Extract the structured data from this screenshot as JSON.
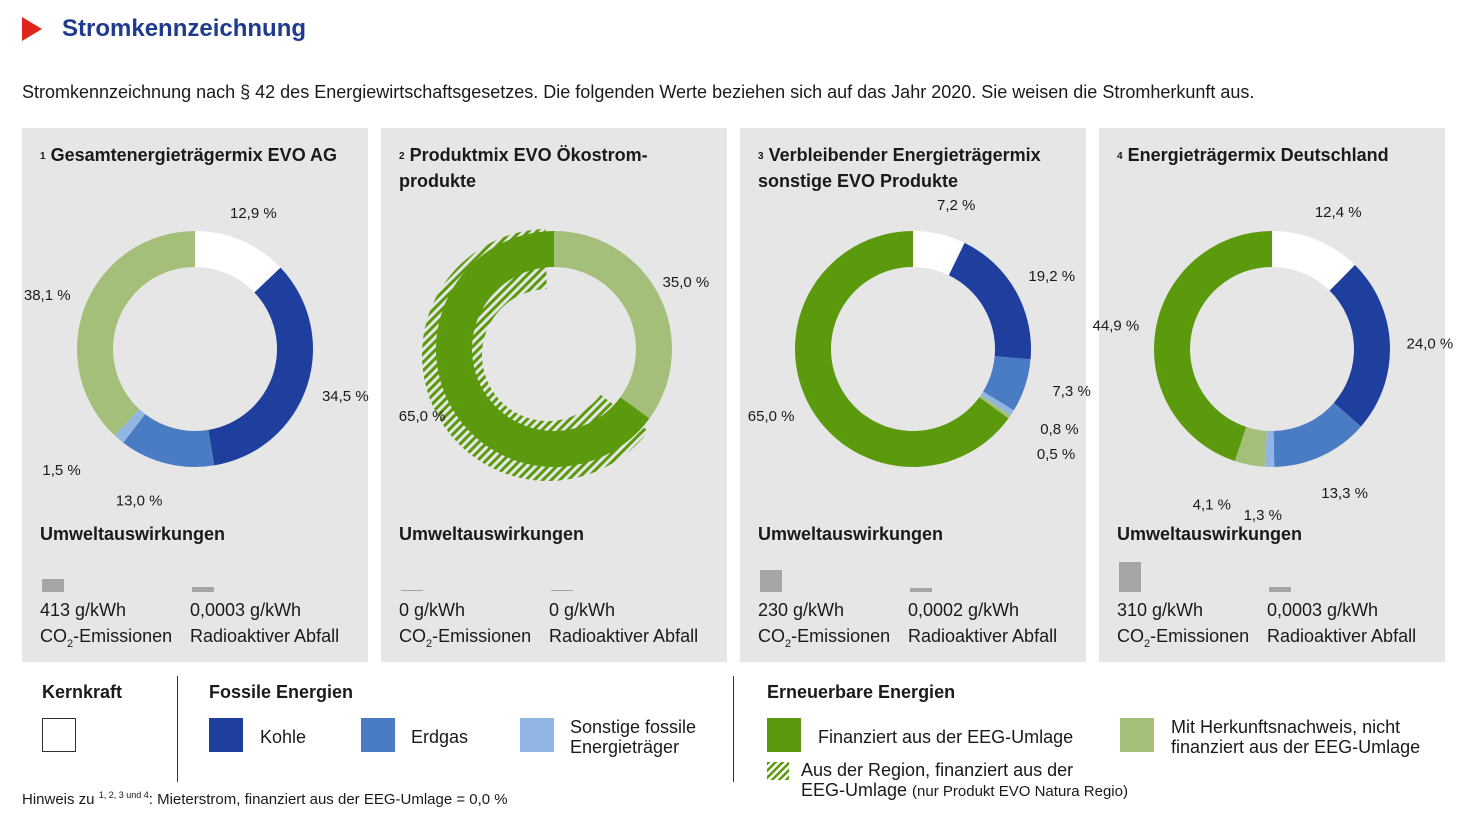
{
  "header": {
    "title": "Stromkennzeichnung"
  },
  "intro": "Stromkennzeichnung nach § 42 des Energiewirtschaftsgesetzes. Die folgenden Werte beziehen sich auf das Jahr 2020. Sie weisen die Stromherkunft aus.",
  "colors": {
    "kernkraft": "#ffffff",
    "kohle": "#1f3f9e",
    "erdgas": "#4a7cc4",
    "sonstige": "#92b6e3",
    "eeg": "#5a9a0c",
    "hkn": "#a4bf7a",
    "panel": "#e6e6e6"
  },
  "panels": [
    {
      "num": "1",
      "title": "Gesamtenergieträgermix EVO AG",
      "env_title": "Umweltauswirkungen",
      "co2_value": "413 g/kWh",
      "co2_label_pre": "CO",
      "co2_label_sub": "2",
      "co2_label_post": "-Emissionen",
      "rad_value": "0,0003 g/kWh",
      "rad_label": "Radioaktiver Abfall"
    },
    {
      "num": "2",
      "title": "Produktmix EVO Ökostrom-\nprodukte",
      "env_title": "Umweltauswirkungen",
      "co2_value": "0 g/kWh",
      "co2_label_pre": "CO",
      "co2_label_sub": "2",
      "co2_label_post": "-Emissionen",
      "rad_value": "0 g/kWh",
      "rad_label": "Radioaktiver Abfall"
    },
    {
      "num": "3",
      "title": "Verbleibender Energieträgermix\nsonstige EVO Produkte",
      "env_title": "Umweltauswirkungen",
      "co2_value": "230 g/kWh",
      "co2_label_pre": "CO",
      "co2_label_sub": "2",
      "co2_label_post": "-Emissionen",
      "rad_value": "0,0002 g/kWh",
      "rad_label": "Radioaktiver Abfall"
    },
    {
      "num": "4",
      "title": "Energieträgermix Deutschland",
      "env_title": "Umweltauswirkungen",
      "co2_value": "310 g/kWh",
      "co2_label_pre": "CO",
      "co2_label_sub": "2",
      "co2_label_post": "-Emissionen",
      "rad_value": "0,0003 g/kWh",
      "rad_label": "Radioaktiver Abfall"
    }
  ],
  "chart_data": [
    {
      "type": "pie",
      "title": "Gesamtenergieträgermix EVO AG",
      "slices": [
        {
          "name": "Kernkraft",
          "value": 12.9,
          "label": "12,9 %",
          "color": "#ffffff"
        },
        {
          "name": "Kohle",
          "value": 34.5,
          "label": "34,5 %",
          "color": "#1f3f9e"
        },
        {
          "name": "Erdgas",
          "value": 13.0,
          "label": "13,0 %",
          "color": "#4a7cc4"
        },
        {
          "name": "Sonstige fossile Energieträger",
          "value": 1.5,
          "label": "1,5 %",
          "color": "#92b6e3"
        },
        {
          "name": "Mit Herkunftsnachweis, nicht finanziert aus der EEG-Umlage",
          "value": 38.1,
          "label": "38,1 %",
          "color": "#a4bf7a"
        }
      ],
      "co2_g_per_kwh": 413,
      "radioactive_g_per_kwh": 0.0003
    },
    {
      "type": "pie",
      "title": "Produktmix EVO Ökostromprodukte",
      "slices": [
        {
          "name": "Mit Herkunftsnachweis, nicht finanziert aus der EEG-Umlage",
          "value": 35.0,
          "label": "35,0 %",
          "color": "#a4bf7a"
        },
        {
          "name": "Finanziert aus der EEG-Umlage",
          "value": 65.0,
          "label": "65,0 %",
          "color": "#5a9a0c",
          "regional_hatched": true
        }
      ],
      "co2_g_per_kwh": 0,
      "radioactive_g_per_kwh": 0
    },
    {
      "type": "pie",
      "title": "Verbleibender Energieträgermix sonstige EVO Produkte",
      "slices": [
        {
          "name": "Kernkraft",
          "value": 7.2,
          "label": "7,2 %",
          "color": "#ffffff"
        },
        {
          "name": "Kohle",
          "value": 19.2,
          "label": "19,2 %",
          "color": "#1f3f9e"
        },
        {
          "name": "Erdgas",
          "value": 7.3,
          "label": "7,3 %",
          "color": "#4a7cc4"
        },
        {
          "name": "Sonstige fossile Energieträger",
          "value": 0.8,
          "label": "0,8 %",
          "color": "#92b6e3"
        },
        {
          "name": "Mit Herkunftsnachweis, nicht finanziert aus der EEG-Umlage",
          "value": 0.5,
          "label": "0,5 %",
          "color": "#a4bf7a"
        },
        {
          "name": "Finanziert aus der EEG-Umlage",
          "value": 65.0,
          "label": "65,0 %",
          "color": "#5a9a0c"
        }
      ],
      "co2_g_per_kwh": 230,
      "radioactive_g_per_kwh": 0.0002
    },
    {
      "type": "pie",
      "title": "Energieträgermix Deutschland",
      "slices": [
        {
          "name": "Kernkraft",
          "value": 12.4,
          "label": "12,4 %",
          "color": "#ffffff"
        },
        {
          "name": "Kohle",
          "value": 24.0,
          "label": "24,0 %",
          "color": "#1f3f9e"
        },
        {
          "name": "Erdgas",
          "value": 13.3,
          "label": "13,3 %",
          "color": "#4a7cc4"
        },
        {
          "name": "Sonstige fossile Energieträger",
          "value": 1.3,
          "label": "1,3 %",
          "color": "#92b6e3"
        },
        {
          "name": "Mit Herkunftsnachweis, nicht finanziert aus der EEG-Umlage",
          "value": 4.1,
          "label": "4,1 %",
          "color": "#a4bf7a"
        },
        {
          "name": "Finanziert aus der EEG-Umlage",
          "value": 44.9,
          "label": "44,9 %",
          "color": "#5a9a0c"
        }
      ],
      "co2_g_per_kwh": 310,
      "radioactive_g_per_kwh": 0.0003
    }
  ],
  "legend": {
    "kernkraft": {
      "head": "Kernkraft"
    },
    "fossil": {
      "head": "Fossile Energien",
      "kohle": "Kohle",
      "erdgas": "Erdgas",
      "sonstige": "Sonstige fossile\nEnergieträger"
    },
    "erneuerbar": {
      "head": "Erneuerbare Energien",
      "eeg": "Finanziert aus der EEG-Umlage",
      "hkn": "Mit Herkunftsnachweis, nicht\nfinanziert aus der EEG-Umlage",
      "region_main": "Aus der Region, finanziert aus der\nEEG-Umlage",
      "region_small": "(nur Produkt EVO Natura Regio)"
    }
  },
  "note": {
    "pre": "Hinweis zu ",
    "sup": "1, 2, 3 und 4",
    "post": ": Mieterstrom, finanziert aus der EEG-Umlage = 0,0 %"
  }
}
